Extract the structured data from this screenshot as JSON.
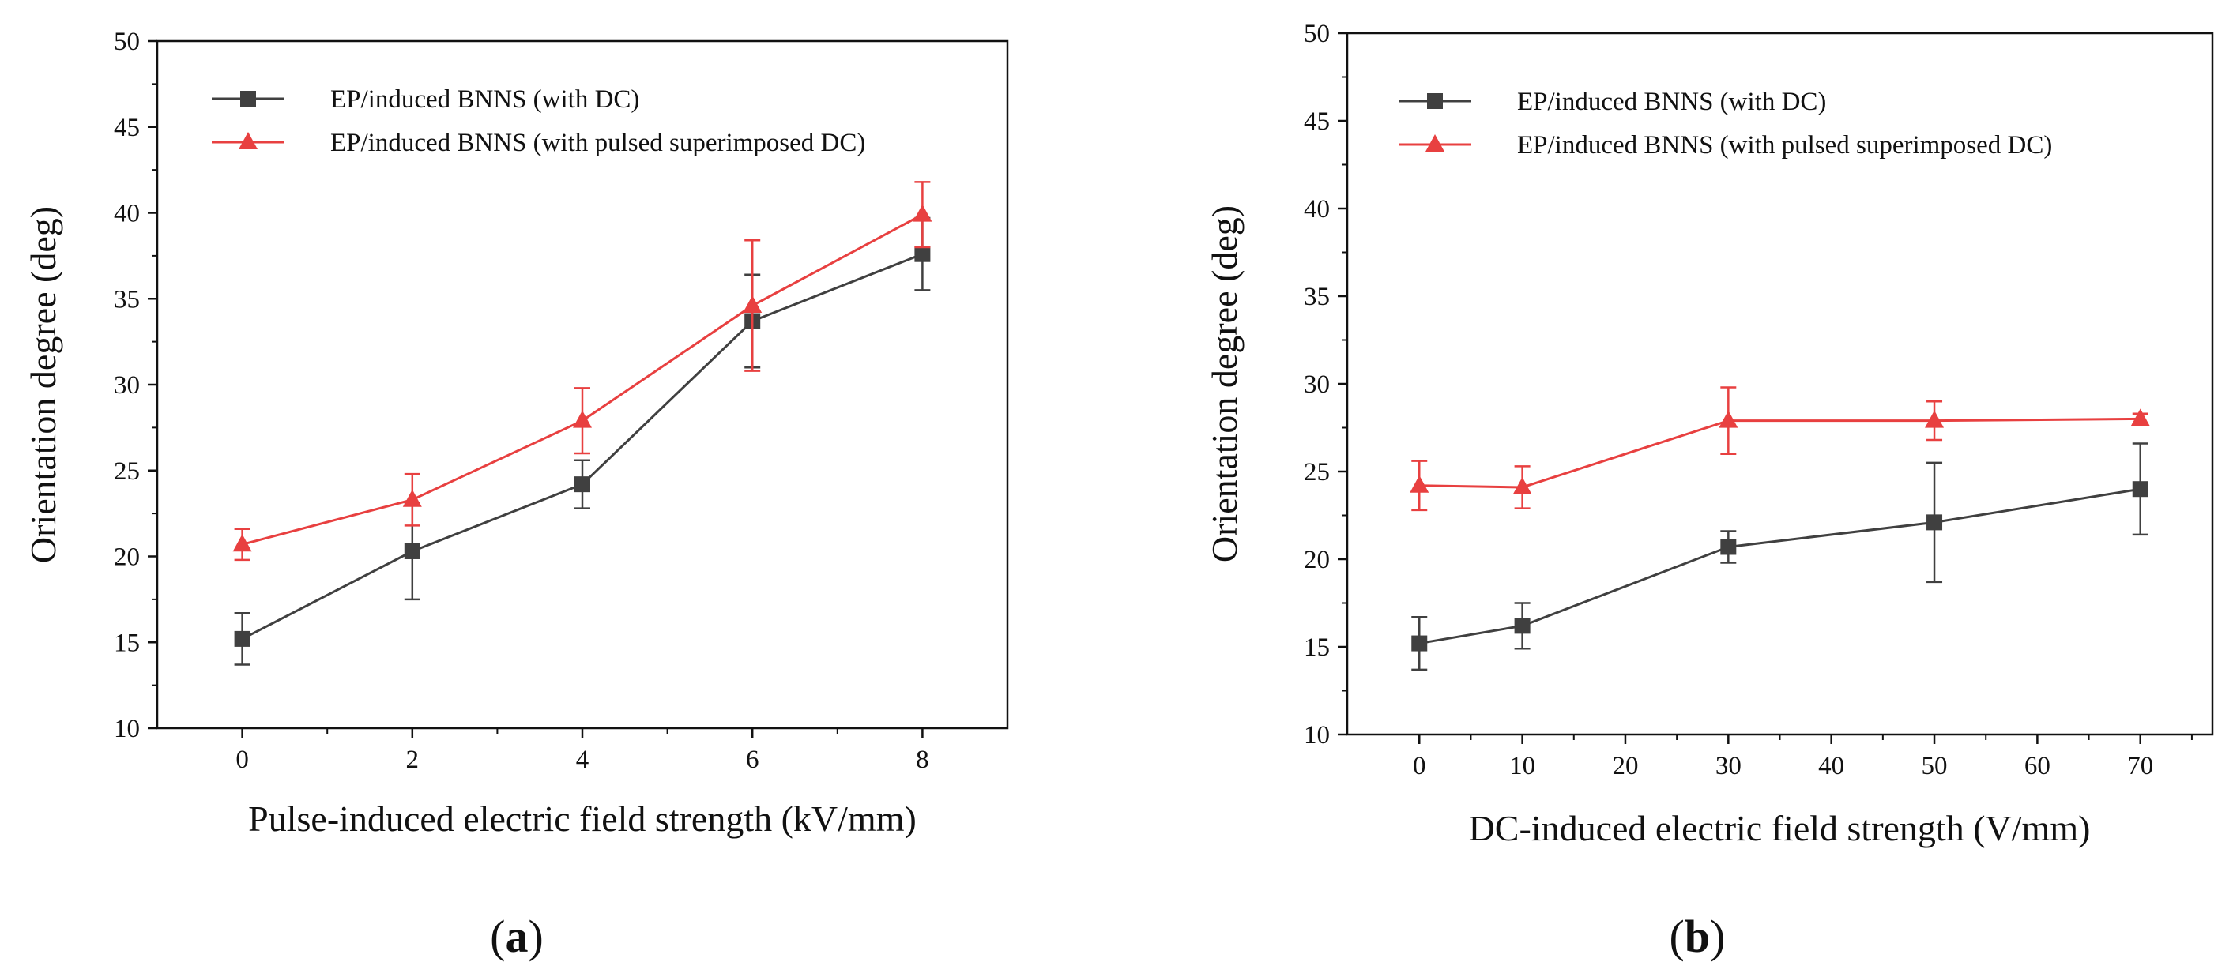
{
  "chart_data": [
    {
      "type": "line",
      "panel_label": {
        "open": "(",
        "letter": "a",
        "close": ")"
      },
      "xlabel": "Pulse-induced electric field strength (kV/mm)",
      "ylabel": "Orientation degree (deg)",
      "xlim": [
        -1,
        9
      ],
      "ylim": [
        10,
        50
      ],
      "xticks": [
        0,
        2,
        4,
        6,
        8
      ],
      "xticks_minor": [
        1,
        3,
        5,
        7
      ],
      "yticks": [
        10,
        15,
        20,
        25,
        30,
        35,
        40,
        45,
        50
      ],
      "legend": "top-left",
      "series": [
        {
          "name": "EP/induced BNNS (with DC)",
          "color": "#404040",
          "marker": "square",
          "x": [
            0,
            2,
            4,
            6,
            8
          ],
          "y": [
            15.2,
            20.3,
            24.2,
            33.7,
            37.6
          ],
          "err": [
            1.5,
            2.8,
            1.4,
            2.7,
            2.1
          ]
        },
        {
          "name": "EP/induced BNNS (with pulsed superimposed DC)",
          "color": "#e84040",
          "marker": "triangle",
          "x": [
            0,
            2,
            4,
            6,
            8
          ],
          "y": [
            20.7,
            23.3,
            27.9,
            34.6,
            39.9
          ],
          "err": [
            0.9,
            1.5,
            1.9,
            3.8,
            1.9
          ]
        }
      ]
    },
    {
      "type": "line",
      "panel_label": {
        "open": "(",
        "letter": "b",
        "close": ")"
      },
      "xlabel": "DC-induced electric field strength (V/mm)",
      "ylabel": "Orientation degree (deg)",
      "xlim": [
        -7,
        77
      ],
      "ylim": [
        10,
        50
      ],
      "xticks": [
        0,
        10,
        20,
        30,
        40,
        50,
        60,
        70
      ],
      "xticks_minor": [
        5,
        15,
        25,
        35,
        45,
        55,
        65,
        75
      ],
      "yticks": [
        10,
        15,
        20,
        25,
        30,
        35,
        40,
        45,
        50
      ],
      "legend": "top-left",
      "series": [
        {
          "name": "EP/induced BNNS (with DC)",
          "color": "#404040",
          "marker": "square",
          "x": [
            0,
            10,
            30,
            50,
            70
          ],
          "y": [
            15.2,
            16.2,
            20.7,
            22.1,
            24.0
          ],
          "err": [
            1.5,
            1.3,
            0.9,
            3.4,
            2.6
          ]
        },
        {
          "name": "EP/induced BNNS (with pulsed superimposed DC)",
          "color": "#e84040",
          "marker": "triangle",
          "x": [
            0,
            10,
            30,
            50,
            70
          ],
          "y": [
            24.2,
            24.1,
            27.9,
            27.9,
            28.0
          ],
          "err": [
            1.4,
            1.2,
            1.9,
            1.1,
            0.3
          ]
        }
      ]
    }
  ]
}
